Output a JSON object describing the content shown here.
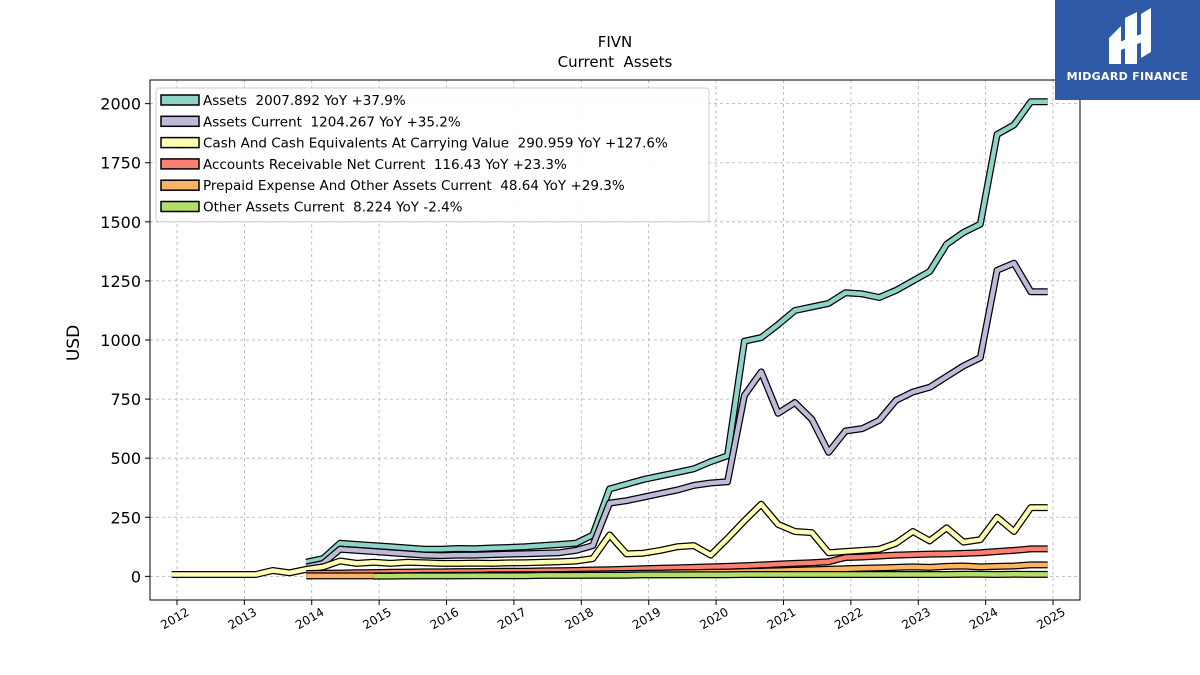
{
  "chart_data": {
    "type": "line",
    "title": "FIVN",
    "subtitle": "Current  Assets",
    "ylabel": "USD",
    "xlabel": "",
    "ylim": [
      -100,
      2100
    ],
    "xlim": [
      2011.6,
      2025.4
    ],
    "yticks": [
      0,
      250,
      500,
      750,
      1000,
      1250,
      1500,
      1750,
      2000
    ],
    "xticks": [
      "2012",
      "2013",
      "2014",
      "2015",
      "2016",
      "2017",
      "2018",
      "2019",
      "2020",
      "2021",
      "2022",
      "2023",
      "2024",
      "2025"
    ],
    "grid": true,
    "legend_position": "top-left",
    "series": [
      {
        "name": "Assets  2007.892 YoY +37.9%",
        "color": "#8dd3c7",
        "x": [
          2013.92,
          2014.17,
          2014.42,
          2014.67,
          2014.92,
          2015.17,
          2015.42,
          2015.67,
          2015.92,
          2016.17,
          2016.42,
          2016.67,
          2016.92,
          2017.17,
          2017.42,
          2017.67,
          2017.92,
          2018.17,
          2018.42,
          2018.67,
          2018.92,
          2019.17,
          2019.42,
          2019.67,
          2019.92,
          2020.17,
          2020.42,
          2020.67,
          2020.92,
          2021.17,
          2021.42,
          2021.67,
          2021.92,
          2022.17,
          2022.42,
          2022.67,
          2022.92,
          2023.17,
          2023.42,
          2023.67,
          2023.92,
          2024.17,
          2024.42,
          2024.67,
          2024.92
        ],
        "values": [
          60,
          75,
          140,
          135,
          130,
          125,
          120,
          115,
          115,
          118,
          117,
          120,
          122,
          125,
          130,
          135,
          140,
          175,
          370,
          390,
          410,
          425,
          440,
          455,
          485,
          510,
          995,
          1010,
          1065,
          1125,
          1140,
          1155,
          1200,
          1195,
          1180,
          1210,
          1250,
          1290,
          1405,
          1455,
          1490,
          1870,
          1910,
          2007.9,
          2007.9
        ]
      },
      {
        "name": "Assets Current  1204.267 YoY +35.2%",
        "color": "#bebada",
        "x": [
          2013.92,
          2014.17,
          2014.42,
          2014.67,
          2014.92,
          2015.17,
          2015.42,
          2015.67,
          2015.92,
          2016.17,
          2016.42,
          2016.67,
          2016.92,
          2017.17,
          2017.42,
          2017.67,
          2017.92,
          2018.17,
          2018.42,
          2018.67,
          2018.92,
          2019.17,
          2019.42,
          2019.67,
          2019.92,
          2020.17,
          2020.42,
          2020.67,
          2020.92,
          2021.17,
          2021.42,
          2021.67,
          2021.92,
          2022.17,
          2022.42,
          2022.67,
          2022.92,
          2023.17,
          2023.42,
          2023.67,
          2023.92,
          2024.17,
          2024.42,
          2024.67,
          2024.92
        ],
        "values": [
          40,
          55,
          115,
          110,
          105,
          100,
          95,
          90,
          88,
          90,
          90,
          92,
          94,
          96,
          98,
          100,
          110,
          130,
          310,
          320,
          335,
          350,
          365,
          385,
          395,
          400,
          765,
          865,
          690,
          735,
          665,
          525,
          615,
          625,
          660,
          745,
          780,
          800,
          845,
          890,
          925,
          1295,
          1325,
          1204.3,
          1204.3
        ]
      },
      {
        "name": "Cash And Cash Equivalents At Carrying Value  290.959 YoY +127.6%",
        "color": "#ffffb3",
        "x": [
          2011.92,
          2012.17,
          2012.42,
          2012.67,
          2012.92,
          2013.17,
          2013.42,
          2013.67,
          2013.92,
          2014.17,
          2014.42,
          2014.67,
          2014.92,
          2015.17,
          2015.42,
          2015.67,
          2015.92,
          2016.17,
          2016.42,
          2016.67,
          2016.92,
          2017.17,
          2017.42,
          2017.67,
          2017.92,
          2018.17,
          2018.42,
          2018.67,
          2018.92,
          2019.17,
          2019.42,
          2019.67,
          2019.92,
          2020.17,
          2020.42,
          2020.67,
          2020.92,
          2021.17,
          2021.42,
          2021.67,
          2021.92,
          2022.17,
          2022.42,
          2022.67,
          2022.92,
          2023.17,
          2023.42,
          2023.67,
          2023.92,
          2024.17,
          2024.42,
          2024.67,
          2024.92
        ],
        "values": [
          8,
          8,
          8,
          8,
          8,
          8,
          25,
          15,
          30,
          40,
          65,
          55,
          60,
          55,
          60,
          58,
          55,
          55,
          56,
          55,
          57,
          58,
          60,
          62,
          65,
          75,
          175,
          95,
          98,
          110,
          125,
          130,
          90,
          160,
          235,
          305,
          220,
          190,
          185,
          100,
          105,
          110,
          115,
          140,
          190,
          150,
          205,
          145,
          155,
          250,
          190,
          291,
          291
        ]
      },
      {
        "name": "Accounts Receivable Net Current  116.43 YoY +23.3%",
        "color": "#fb8072",
        "x": [
          2013.92,
          2014.17,
          2014.42,
          2014.67,
          2014.92,
          2015.17,
          2015.42,
          2015.67,
          2015.92,
          2016.17,
          2016.42,
          2016.67,
          2016.92,
          2017.17,
          2017.42,
          2017.67,
          2017.92,
          2018.17,
          2018.42,
          2018.67,
          2018.92,
          2019.17,
          2019.42,
          2019.67,
          2019.92,
          2020.17,
          2020.42,
          2020.67,
          2020.92,
          2021.17,
          2021.42,
          2021.67,
          2021.92,
          2022.17,
          2022.42,
          2022.67,
          2022.92,
          2023.17,
          2023.42,
          2023.67,
          2023.92,
          2024.17,
          2024.42,
          2024.67,
          2024.92
        ],
        "values": [
          12,
          13,
          14,
          15,
          16,
          17,
          18,
          19,
          19,
          20,
          20,
          21,
          22,
          22,
          23,
          24,
          25,
          27,
          28,
          30,
          32,
          34,
          36,
          38,
          40,
          42,
          45,
          48,
          52,
          55,
          58,
          62,
          80,
          82,
          86,
          90,
          92,
          94,
          95,
          97,
          100,
          105,
          110,
          116.4,
          116.4
        ]
      },
      {
        "name": "Prepaid Expense And Other Assets Current  48.64 YoY +29.3%",
        "color": "#fdb462",
        "x": [
          2013.92,
          2014.17,
          2014.42,
          2014.67,
          2014.92,
          2015.17,
          2015.42,
          2015.67,
          2015.92,
          2016.17,
          2016.42,
          2016.67,
          2016.92,
          2017.17,
          2017.42,
          2017.67,
          2017.92,
          2018.17,
          2018.42,
          2018.67,
          2018.92,
          2019.17,
          2019.42,
          2019.67,
          2019.92,
          2020.17,
          2020.42,
          2020.67,
          2020.92,
          2021.17,
          2021.42,
          2021.67,
          2021.92,
          2022.17,
          2022.42,
          2022.67,
          2022.92,
          2023.17,
          2023.42,
          2023.67,
          2023.92,
          2024.17,
          2024.42,
          2024.67,
          2024.92
        ],
        "values": [
          2,
          2,
          2,
          2,
          2,
          3,
          3,
          4,
          4,
          5,
          5,
          6,
          6,
          7,
          7,
          8,
          9,
          10,
          11,
          12,
          13,
          14,
          15,
          16,
          17,
          18,
          20,
          22,
          24,
          26,
          28,
          30,
          32,
          34,
          36,
          38,
          40,
          38,
          42,
          44,
          40,
          42,
          44,
          48.6,
          48.6
        ]
      },
      {
        "name": "Other Assets Current  8.224 YoY -2.4%",
        "color": "#b3de69",
        "x": [
          2014.92,
          2015.17,
          2015.42,
          2015.67,
          2015.92,
          2016.17,
          2016.42,
          2016.67,
          2016.92,
          2017.17,
          2017.42,
          2017.67,
          2017.92,
          2018.17,
          2018.42,
          2018.67,
          2018.92,
          2019.17,
          2019.42,
          2019.67,
          2019.92,
          2020.17,
          2020.42,
          2020.67,
          2020.92,
          2021.17,
          2021.42,
          2021.67,
          2021.92,
          2022.17,
          2022.42,
          2022.67,
          2022.92,
          2023.17,
          2023.42,
          2023.67,
          2023.92,
          2024.17,
          2024.42,
          2024.67,
          2024.92
        ],
        "values": [
          1,
          1,
          2,
          2,
          2,
          2,
          3,
          3,
          3,
          3,
          4,
          4,
          4,
          5,
          5,
          5,
          6,
          6,
          6,
          7,
          7,
          7,
          8,
          8,
          8,
          8,
          8,
          8,
          8,
          8,
          8,
          8,
          8,
          8,
          8,
          9,
          9,
          8,
          9,
          8.2,
          8.2
        ]
      }
    ]
  },
  "logo": {
    "brand_name": "MIDGARD FINANCE",
    "background": "#2f5aa8"
  }
}
